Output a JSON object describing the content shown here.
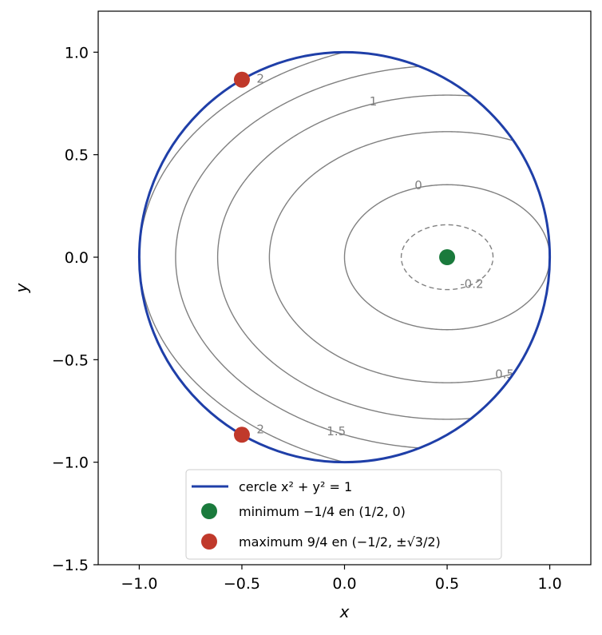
{
  "chart_data": {
    "type": "line",
    "title": "",
    "xlabel": "x",
    "ylabel": "y",
    "xlim": [
      -1.2,
      1.2
    ],
    "ylim": [
      -1.5,
      1.2
    ],
    "xticks": [
      "−1.0",
      "−0.5",
      "0.0",
      "0.5",
      "1.0"
    ],
    "xtick_values": [
      -1.0,
      -0.5,
      0.0,
      0.5,
      1.0
    ],
    "yticks": [
      "1.0",
      "0.5",
      "0.0",
      "−0.5",
      "−1.0",
      "−1.5"
    ],
    "ytick_values": [
      1.0,
      0.5,
      0.0,
      -0.5,
      -1.0,
      -1.5
    ],
    "grid": false,
    "circle": {
      "center": [
        0,
        0
      ],
      "radius": 1,
      "color": "#1f3fa8"
    },
    "contour_function": "f(x,y) = x^2 + 2y^2 - x",
    "contour_levels": [
      -0.2,
      0,
      0.5,
      1,
      1.5,
      2
    ],
    "contour_labels": [
      {
        "text": "-0.2",
        "x": 0.62,
        "y": -0.13
      },
      {
        "text": "0",
        "x": 0.36,
        "y": 0.35
      },
      {
        "text": "0.5",
        "x": 0.78,
        "y": -0.57
      },
      {
        "text": "1",
        "x": 0.14,
        "y": 0.76
      },
      {
        "text": "1.5",
        "x": -0.04,
        "y": -0.85
      },
      {
        "text": "2",
        "x": -0.41,
        "y": 0.87
      },
      {
        "text": "2",
        "x": -0.41,
        "y": -0.84
      }
    ],
    "points": [
      {
        "name": "minimum",
        "x": 0.5,
        "y": 0,
        "value": -0.25,
        "color": "#1a7a3c"
      },
      {
        "name": "maximum",
        "x": -0.5,
        "y": 0.866,
        "value": 2.25,
        "color": "#c0392b"
      },
      {
        "name": "maximum",
        "x": -0.5,
        "y": -0.866,
        "value": 2.25,
        "color": "#c0392b"
      }
    ],
    "legend": {
      "placement": "lower-center",
      "entries": [
        {
          "label": "cercle x² + y² = 1",
          "color": "#1f3fa8",
          "marker": "line"
        },
        {
          "label": "minimum −1/4 en (1/2, 0)",
          "color": "#1a7a3c",
          "marker": "dot"
        },
        {
          "label": "maximum 9/4 en (−1/2, ±√3/2)",
          "color": "#c0392b",
          "marker": "dot"
        }
      ]
    }
  }
}
